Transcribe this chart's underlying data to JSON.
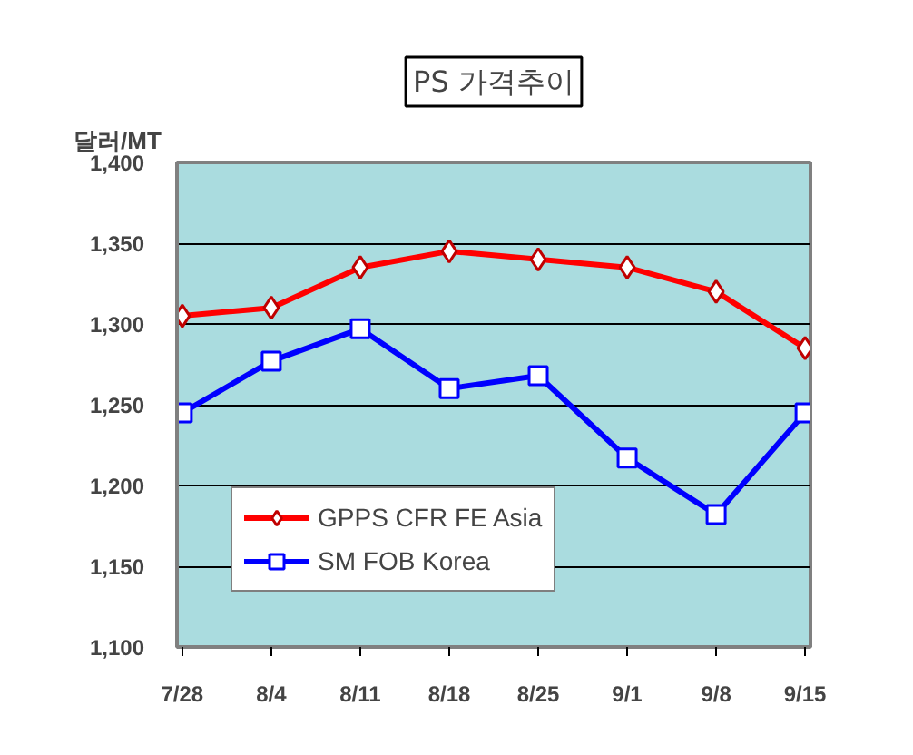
{
  "chart_data": {
    "type": "line",
    "title": "PS 가격추이",
    "ylabel": "달러/MT",
    "categories": [
      "7/28",
      "8/4",
      "8/11",
      "8/18",
      "8/25",
      "9/1",
      "9/8",
      "9/15"
    ],
    "series": [
      {
        "name": "GPPS CFR FE Asia",
        "color": "#ff0000",
        "marker": "diamond",
        "values": [
          1305,
          1310,
          1335,
          1345,
          1340,
          1335,
          1320,
          1285
        ]
      },
      {
        "name": "SM FOB Korea",
        "color": "#0000ff",
        "marker": "square",
        "values": [
          1245,
          1277,
          1297,
          1260,
          1268,
          1217,
          1182,
          1245
        ]
      }
    ],
    "ylim": [
      1100,
      1400
    ],
    "yticks": [
      {
        "value": 1100,
        "label": "1,100"
      },
      {
        "value": 1150,
        "label": "1,150"
      },
      {
        "value": 1200,
        "label": "1,200"
      },
      {
        "value": 1250,
        "label": "1,250"
      },
      {
        "value": 1300,
        "label": "1,300"
      },
      {
        "value": 1350,
        "label": "1,350"
      },
      {
        "value": 1400,
        "label": "1,400"
      }
    ],
    "grid": "y",
    "legend": "bottom left",
    "line_style": "solid"
  }
}
